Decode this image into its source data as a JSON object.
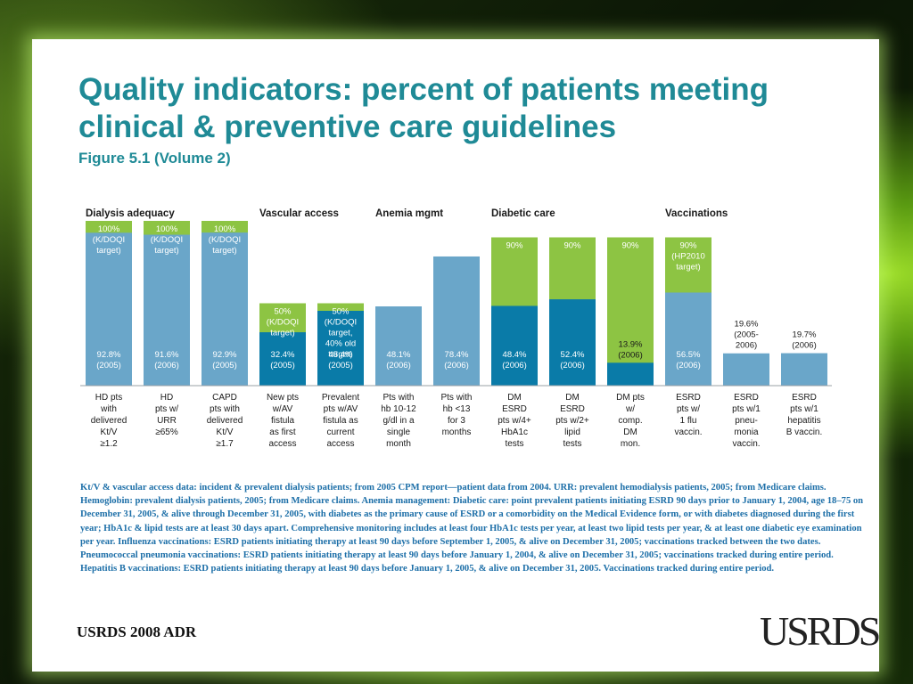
{
  "title": "Quality indicators: percent of patients meeting clinical & preventive care guidelines",
  "subtitle": "Figure 5.1 (Volume 2)",
  "colors": {
    "title": "#1f8a96",
    "bar_light_blue": "#6aa6c9",
    "bar_dark_blue": "#0a7ba8",
    "target_green": "#8dc443",
    "footnote": "#1d6fa8"
  },
  "chart_data": {
    "type": "bar",
    "ylim": [
      0,
      100
    ],
    "groups": [
      {
        "label": "Dialysis adequacy",
        "start": 0,
        "end": 2
      },
      {
        "label": "Vascular access",
        "start": 3,
        "end": 4
      },
      {
        "label": "Anemia mgmt",
        "start": 5,
        "end": 6
      },
      {
        "label": "Diabetic care",
        "start": 7,
        "end": 9
      },
      {
        "label": "Vaccinations",
        "start": 10,
        "end": 12
      }
    ],
    "bars": [
      {
        "category": [
          "HD pts",
          "with",
          "delivered",
          "Kt/V",
          "≥1.2"
        ],
        "value": 92.8,
        "value_label": [
          "92.8%",
          "(2005)"
        ],
        "target": 100,
        "target_label": [
          "100%",
          "(K/DOQI",
          "target)"
        ],
        "style": "light"
      },
      {
        "category": [
          "HD",
          "pts w/",
          "URR",
          "≥65%"
        ],
        "value": 91.6,
        "value_label": [
          "91.6%",
          "(2006)"
        ],
        "target": 100,
        "target_label": [
          "100%",
          "(K/DOQI",
          "target)"
        ],
        "style": "light"
      },
      {
        "category": [
          "CAPD",
          "pts with",
          "delivered",
          "Kt/V",
          "≥1.7"
        ],
        "value": 92.9,
        "value_label": [
          "92.9%",
          "(2005)"
        ],
        "target": 100,
        "target_label": [
          "100%",
          "(K/DOQI",
          "target)"
        ],
        "style": "light"
      },
      {
        "category": [
          "New pts",
          "w/AV",
          "fistula",
          "as first",
          "access"
        ],
        "value": 32.4,
        "value_label": [
          "32.4%",
          "(2005)"
        ],
        "target": 50,
        "target_label": [
          "50%",
          "(K/DOQI",
          "target)"
        ],
        "style": "dark"
      },
      {
        "category": [
          "Prevalent",
          "pts w/AV",
          "fistula as",
          "current",
          "access"
        ],
        "value": 45.4,
        "value_label": [
          "45.4%",
          "(2005)"
        ],
        "target": 50,
        "target_label": [
          "50%",
          "(K/DOQI",
          "target,",
          "40% old",
          "target)"
        ],
        "style": "dark"
      },
      {
        "category": [
          "Pts with",
          "hb 10-12",
          "g/dl in a",
          "single",
          "month"
        ],
        "value": 48.1,
        "value_label": [
          "48.1%",
          "(2006)"
        ],
        "target": null,
        "target_label": [],
        "style": "light"
      },
      {
        "category": [
          "Pts with",
          "hb <13",
          "for 3",
          "months"
        ],
        "value": 78.4,
        "value_label": [
          "78.4%",
          "(2006)"
        ],
        "target": null,
        "target_label": [],
        "style": "light"
      },
      {
        "category": [
          "DM",
          "ESRD",
          "pts w/4+",
          "HbA1c",
          "tests"
        ],
        "value": 48.4,
        "value_label": [
          "48.4%",
          "(2006)"
        ],
        "target": 90,
        "target_label": [
          "90%"
        ],
        "style": "dark"
      },
      {
        "category": [
          "DM",
          "ESRD",
          "pts w/2+",
          "lipid",
          "tests"
        ],
        "value": 52.4,
        "value_label": [
          "52.4%",
          "(2006)"
        ],
        "target": 90,
        "target_label": [
          "90%"
        ],
        "style": "dark"
      },
      {
        "category": [
          "DM pts",
          "w/",
          "comp.",
          "DM",
          "mon."
        ],
        "value": 13.9,
        "value_label": [
          "13.9%",
          "(2006)"
        ],
        "target": 90,
        "target_label": [
          "90%"
        ],
        "style": "dark"
      },
      {
        "category": [
          "ESRD",
          "pts w/",
          "1 flu",
          "vaccin."
        ],
        "value": 56.5,
        "value_label": [
          "56.5%",
          "(2006)"
        ],
        "target": 90,
        "target_label": [
          "90%",
          "(HP2010",
          "target)"
        ],
        "style": "light"
      },
      {
        "category": [
          "ESRD",
          "pts w/1",
          "pneu-",
          "monia",
          "vaccin."
        ],
        "value": 19.6,
        "value_label": [
          "19.6%",
          "(2005-",
          "2006)"
        ],
        "target": null,
        "target_label": [],
        "style": "light"
      },
      {
        "category": [
          "ESRD",
          "pts w/1",
          "hepatitis",
          "B vaccin."
        ],
        "value": 19.7,
        "value_label": [
          "19.7%",
          "(2006)"
        ],
        "target": null,
        "target_label": [],
        "style": "light"
      }
    ]
  },
  "footnote": "Kt/V & vascular access data: incident & prevalent dialysis patients; from 2005 CPM report—patient data from 2004. URR: prevalent hemodialysis patients, 2005; from Medicare claims. Hemoglobin: prevalent dialysis patients, 2005; from Medicare claims. Anemia management: Diabetic care: point prevalent patients initiating ESRD 90 days prior to January 1, 2004, age 18–75 on December 31, 2005, & alive through December 31, 2005, with diabetes as the primary cause of ESRD or a comorbidity on the Medical Evidence form, or with diabetes diagnosed during the first year; HbA1c & lipid tests are at least 30 days apart. Comprehensive monitoring includes at least four HbA1c tests per year, at least two lipid tests per year, & at least one diabetic eye examination per year. Influenza vaccinations: ESRD patients initiating therapy at least 90 days before September 1, 2005, & alive on December 31, 2005; vaccinations tracked between the two dates. Pneumococcal pneumonia vaccinations: ESRD patients initiating therapy at least 90 days before January 1, 2004, & alive on December 31, 2005; vaccinations tracked during entire period. Hepatitis B vaccinations: ESRD patients initiating therapy at least 90 days before January 1, 2005, & alive on December 31, 2005. Vaccinations tracked during entire period.",
  "footer_label": "USRDS 2008 ADR",
  "logo_text": "USRDS"
}
